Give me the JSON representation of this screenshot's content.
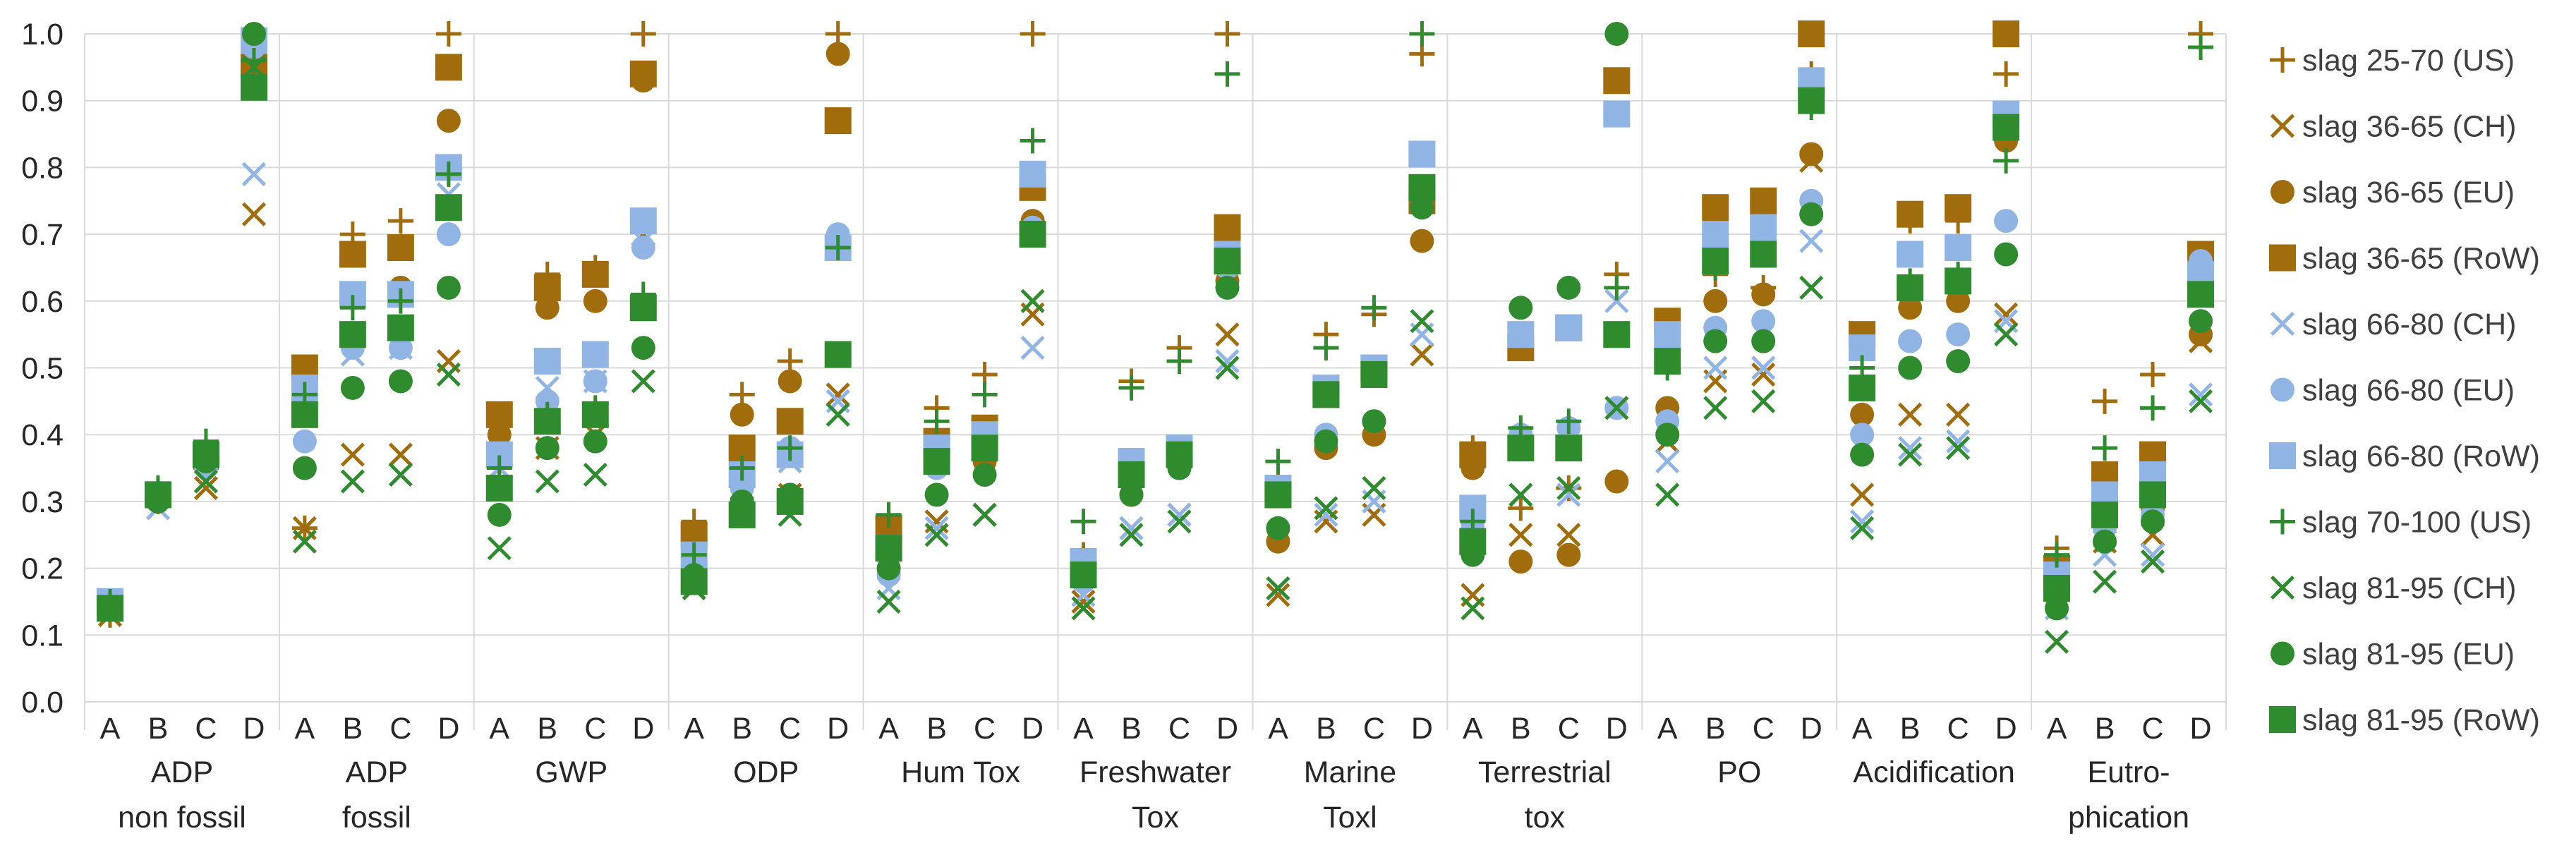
{
  "chart_data": {
    "type": "scatter",
    "title": "",
    "ylim": [
      0,
      1
    ],
    "yticks": [
      "0.0",
      "0.1",
      "0.2",
      "0.3",
      "0.4",
      "0.5",
      "0.6",
      "0.7",
      "0.8",
      "0.9",
      "1.0"
    ],
    "grid": true,
    "legend_position": "right",
    "sub_categories": [
      "A",
      "B",
      "C",
      "D"
    ],
    "groups": [
      {
        "label": [
          "ADP",
          "non fossil"
        ]
      },
      {
        "label": [
          "ADP",
          "fossil"
        ]
      },
      {
        "label": [
          "GWP"
        ]
      },
      {
        "label": [
          "ODP"
        ]
      },
      {
        "label": [
          "Hum Tox"
        ]
      },
      {
        "label": [
          "Freshwater",
          "Tox"
        ]
      },
      {
        "label": [
          "Marine",
          "Toxl"
        ]
      },
      {
        "label": [
          "Terrestrial",
          "tox"
        ]
      },
      {
        "label": [
          "PO"
        ]
      },
      {
        "label": [
          "Acidification"
        ]
      },
      {
        "label": [
          "Eutro-",
          "phication"
        ]
      }
    ],
    "series": [
      {
        "name": "slag 25-70 (US)",
        "color": "#a06c0c",
        "marker": "plus",
        "values": [
          [
            0.13,
            0.3,
            0.35,
            0.95
          ],
          [
            0.26,
            0.7,
            0.72,
            1.0
          ],
          [
            0.36,
            0.64,
            0.65,
            1.0
          ],
          [
            0.27,
            0.46,
            0.51,
            1.0
          ],
          [
            0.28,
            0.44,
            0.49,
            1.0
          ],
          [
            0.22,
            0.48,
            0.53,
            1.0
          ],
          [
            0.33,
            0.55,
            0.58,
            0.97
          ],
          [
            0.38,
            0.29,
            0.32,
            0.64
          ],
          [
            0.56,
            0.64,
            0.62,
            0.94
          ],
          [
            0.55,
            0.72,
            0.72,
            0.94
          ],
          [
            0.23,
            0.45,
            0.49,
            1.0
          ]
        ]
      },
      {
        "name": "slag 36-65 (CH)",
        "color": "#a06c0c",
        "marker": "x",
        "values": [
          [
            0.13,
            0.31,
            0.32,
            0.73
          ],
          [
            0.26,
            0.37,
            0.37,
            0.51
          ],
          [
            0.35,
            0.38,
            0.4,
            0.7
          ],
          [
            0.2,
            0.32,
            0.31,
            0.46
          ],
          [
            0.25,
            0.27,
            0.28,
            0.58
          ],
          [
            0.15,
            0.26,
            0.28,
            0.55
          ],
          [
            0.16,
            0.27,
            0.28,
            0.52
          ],
          [
            0.16,
            0.25,
            0.25,
            0.44
          ],
          [
            0.39,
            0.48,
            0.49,
            0.81
          ],
          [
            0.31,
            0.43,
            0.43,
            0.58
          ],
          [
            0.2,
            0.24,
            0.25,
            0.54
          ]
        ]
      },
      {
        "name": "slag 36-65 (EU)",
        "color": "#a06c0c",
        "marker": "circle",
        "values": [
          [
            0.14,
            0.3,
            0.36,
            0.96
          ],
          [
            0.48,
            0.55,
            0.62,
            0.87
          ],
          [
            0.4,
            0.59,
            0.6,
            0.93
          ],
          [
            0.24,
            0.43,
            0.48,
            0.97
          ],
          [
            0.24,
            0.36,
            0.36,
            0.72
          ],
          [
            0.2,
            0.31,
            0.35,
            0.63
          ],
          [
            0.24,
            0.38,
            0.4,
            0.69
          ],
          [
            0.35,
            0.21,
            0.22,
            0.33
          ],
          [
            0.44,
            0.6,
            0.61,
            0.82
          ],
          [
            0.43,
            0.59,
            0.6,
            0.84
          ],
          [
            0.19,
            0.28,
            0.29,
            0.55
          ]
        ]
      },
      {
        "name": "slag 36-65 (RoW)",
        "color": "#a06c0c",
        "marker": "square",
        "values": [
          [
            0.15,
            0.31,
            0.37,
            0.95
          ],
          [
            0.5,
            0.67,
            0.68,
            0.95
          ],
          [
            0.43,
            0.62,
            0.64,
            0.94
          ],
          [
            0.25,
            0.38,
            0.42,
            0.87
          ],
          [
            0.26,
            0.39,
            0.41,
            0.77
          ],
          [
            0.21,
            0.35,
            0.38,
            0.71
          ],
          [
            0.31,
            0.46,
            0.5,
            0.75
          ],
          [
            0.37,
            0.53,
            0.56,
            0.93
          ],
          [
            0.57,
            0.74,
            0.75,
            1.0
          ],
          [
            0.55,
            0.73,
            0.74,
            1.0
          ],
          [
            0.2,
            0.34,
            0.37,
            0.67
          ]
        ]
      },
      {
        "name": "slag 66-80 (CH)",
        "color": "#90b4e4",
        "marker": "x",
        "values": [
          [
            0.14,
            0.29,
            0.33,
            0.79
          ],
          [
            0.44,
            0.52,
            0.53,
            0.76
          ],
          [
            0.35,
            0.47,
            0.48,
            0.69
          ],
          [
            0.21,
            0.33,
            0.36,
            0.45
          ],
          [
            0.17,
            0.26,
            0.28,
            0.53
          ],
          [
            0.16,
            0.26,
            0.28,
            0.51
          ],
          [
            0.17,
            0.28,
            0.3,
            0.55
          ],
          [
            0.28,
            0.31,
            0.31,
            0.6
          ],
          [
            0.36,
            0.5,
            0.5,
            0.69
          ],
          [
            0.27,
            0.38,
            0.39,
            0.57
          ],
          [
            0.14,
            0.22,
            0.22,
            0.46
          ]
        ]
      },
      {
        "name": "slag 66-80 (EU)",
        "color": "#90b4e4",
        "marker": "circle",
        "values": [
          [
            0.15,
            0.3,
            0.35,
            0.98
          ],
          [
            0.39,
            0.53,
            0.53,
            0.7
          ],
          [
            0.32,
            0.45,
            0.48,
            0.68
          ],
          [
            0.22,
            0.32,
            0.38,
            0.7
          ],
          [
            0.19,
            0.35,
            0.38,
            0.71
          ],
          [
            0.18,
            0.33,
            0.35,
            0.65
          ],
          [
            0.26,
            0.4,
            0.42,
            0.76
          ],
          [
            0.26,
            0.4,
            0.41,
            0.44
          ],
          [
            0.42,
            0.56,
            0.57,
            0.75
          ],
          [
            0.4,
            0.54,
            0.55,
            0.72
          ],
          [
            0.16,
            0.26,
            0.28,
            0.66
          ]
        ]
      },
      {
        "name": "slag 66-80 (RoW)",
        "color": "#90b4e4",
        "marker": "square",
        "values": [
          [
            0.15,
            0.31,
            0.37,
            0.99
          ],
          [
            0.47,
            0.61,
            0.61,
            0.8
          ],
          [
            0.37,
            0.51,
            0.52,
            0.72
          ],
          [
            0.22,
            0.34,
            0.37,
            0.68
          ],
          [
            0.23,
            0.38,
            0.4,
            0.79
          ],
          [
            0.21,
            0.36,
            0.38,
            0.67
          ],
          [
            0.32,
            0.47,
            0.5,
            0.82
          ],
          [
            0.29,
            0.55,
            0.56,
            0.88
          ],
          [
            0.55,
            0.7,
            0.71,
            0.93
          ],
          [
            0.53,
            0.67,
            0.68,
            0.88
          ],
          [
            0.19,
            0.31,
            0.34,
            0.64
          ]
        ]
      },
      {
        "name": "slag 70-100 (US)",
        "color": "#2e8b2e",
        "marker": "plus",
        "values": [
          [
            0.15,
            0.32,
            0.39,
            0.96
          ],
          [
            0.46,
            0.59,
            0.6,
            0.79
          ],
          [
            0.35,
            0.43,
            0.44,
            0.61
          ],
          [
            0.22,
            0.35,
            0.38,
            0.68
          ],
          [
            0.28,
            0.42,
            0.46,
            0.84
          ],
          [
            0.27,
            0.47,
            0.51,
            0.94
          ],
          [
            0.36,
            0.53,
            0.59,
            1.0
          ],
          [
            0.27,
            0.41,
            0.42,
            0.62
          ],
          [
            0.5,
            0.65,
            0.67,
            0.89
          ],
          [
            0.5,
            0.63,
            0.64,
            0.81
          ],
          [
            0.22,
            0.38,
            0.44,
            0.98
          ]
        ]
      },
      {
        "name": "slag 81-95 (CH)",
        "color": "#2e8b2e",
        "marker": "x",
        "values": [
          [
            0.14,
            0.31,
            0.33,
            0.95
          ],
          [
            0.24,
            0.33,
            0.34,
            0.49
          ],
          [
            0.23,
            0.33,
            0.34,
            0.48
          ],
          [
            0.17,
            0.29,
            0.28,
            0.43
          ],
          [
            0.15,
            0.25,
            0.28,
            0.6
          ],
          [
            0.14,
            0.25,
            0.27,
            0.5
          ],
          [
            0.17,
            0.29,
            0.32,
            0.57
          ],
          [
            0.14,
            0.31,
            0.32,
            0.44
          ],
          [
            0.31,
            0.44,
            0.45,
            0.62
          ],
          [
            0.26,
            0.37,
            0.38,
            0.55
          ],
          [
            0.09,
            0.18,
            0.21,
            0.45
          ]
        ]
      },
      {
        "name": "slag 81-95 (EU)",
        "color": "#2e8b2e",
        "marker": "circle",
        "values": [
          [
            0.14,
            0.3,
            0.36,
            1.0
          ],
          [
            0.35,
            0.47,
            0.48,
            0.62
          ],
          [
            0.28,
            0.38,
            0.39,
            0.53
          ],
          [
            0.19,
            0.3,
            0.31,
            0.52
          ],
          [
            0.2,
            0.31,
            0.34,
            0.7
          ],
          [
            0.19,
            0.31,
            0.35,
            0.62
          ],
          [
            0.26,
            0.39,
            0.42,
            0.74
          ],
          [
            0.22,
            0.59,
            0.62,
            1.0
          ],
          [
            0.4,
            0.54,
            0.54,
            0.73
          ],
          [
            0.37,
            0.5,
            0.51,
            0.67
          ],
          [
            0.14,
            0.24,
            0.27,
            0.57
          ]
        ]
      },
      {
        "name": "slag 81-95 (RoW)",
        "color": "#2e8b2e",
        "marker": "square",
        "values": [
          [
            0.14,
            0.31,
            0.37,
            0.92
          ],
          [
            0.43,
            0.55,
            0.56,
            0.74
          ],
          [
            0.32,
            0.42,
            0.43,
            0.59
          ],
          [
            0.18,
            0.28,
            0.3,
            0.52
          ],
          [
            0.23,
            0.36,
            0.38,
            0.7
          ],
          [
            0.19,
            0.34,
            0.37,
            0.66
          ],
          [
            0.31,
            0.46,
            0.49,
            0.77
          ],
          [
            0.24,
            0.38,
            0.38,
            0.55
          ],
          [
            0.51,
            0.66,
            0.67,
            0.9
          ],
          [
            0.47,
            0.62,
            0.63,
            0.86
          ],
          [
            0.17,
            0.28,
            0.31,
            0.61
          ]
        ]
      }
    ]
  }
}
